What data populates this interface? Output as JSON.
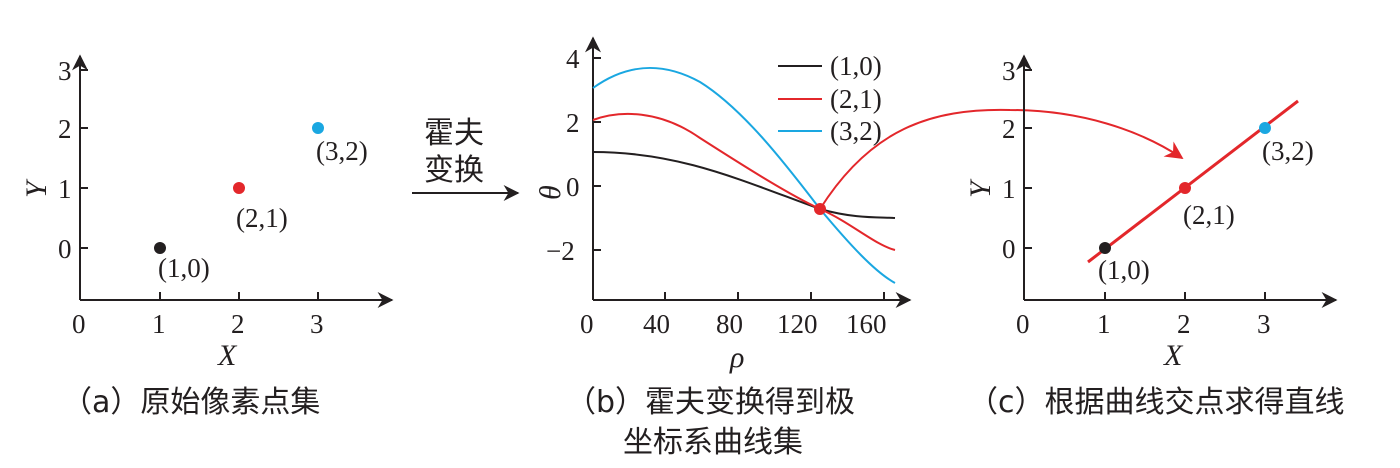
{
  "colors": {
    "black": "#231f20",
    "red": "#e3272b",
    "cyan": "#1aa7e1",
    "axis": "#231f20"
  },
  "arrow_text": [
    "霍夫",
    "变换"
  ],
  "panel_a": {
    "caption": "（a）原始像素点集",
    "xlabel": "X",
    "ylabel": "Y",
    "x_ticks": [
      "0",
      "1",
      "2",
      "3"
    ],
    "y_ticks": [
      "0",
      "1",
      "2",
      "3"
    ],
    "points": [
      {
        "label": "(1,0)",
        "x": 1,
        "y": 0,
        "color": "black"
      },
      {
        "label": "(2,1)",
        "x": 2,
        "y": 1,
        "color": "red"
      },
      {
        "label": "(3,2)",
        "x": 3,
        "y": 2,
        "color": "cyan"
      }
    ]
  },
  "panel_b": {
    "caption_line1": "（b）霍夫变换得到极",
    "caption_line2": "坐标系曲线集",
    "xlabel": "ρ",
    "ylabel": "θ",
    "x_ticks": [
      "0",
      "40",
      "80",
      "120",
      "160"
    ],
    "y_ticks": [
      "4",
      "2",
      "0",
      "−2"
    ],
    "legend": [
      "(1,0)",
      "(2,1)",
      "(3,2)"
    ]
  },
  "panel_c": {
    "caption": "（c）根据曲线交点求得直线",
    "xlabel": "X",
    "ylabel": "Y",
    "x_ticks": [
      "0",
      "1",
      "2",
      "3"
    ],
    "y_ticks": [
      "0",
      "1",
      "2",
      "3"
    ],
    "points": [
      {
        "label": "(1,0)",
        "x": 1,
        "y": 0,
        "color": "black"
      },
      {
        "label": "(2,1)",
        "x": 2,
        "y": 1,
        "color": "red"
      },
      {
        "label": "(3,2)",
        "x": 3,
        "y": 2,
        "color": "cyan"
      }
    ]
  }
}
